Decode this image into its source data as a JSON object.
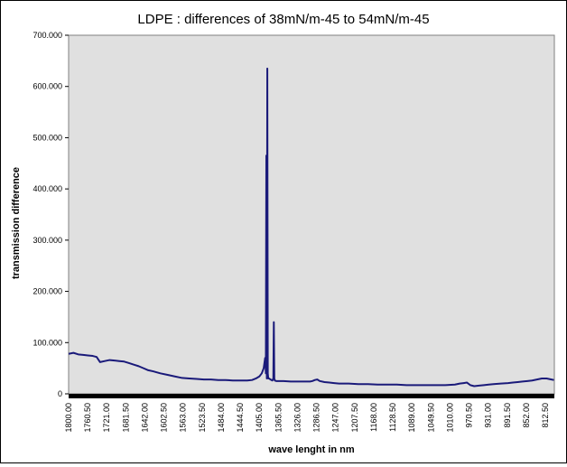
{
  "chart_data": {
    "type": "line",
    "title": "LDPE : differences of 38mN/m-45 to 54mN/m-45",
    "xlabel": "wave lenght in nm",
    "ylabel": "transmission difference",
    "x_reversed": true,
    "xlim": [
      1800.0,
      794.0
    ],
    "ylim": [
      0,
      700
    ],
    "yticks": [
      "0",
      "100.000",
      "200.000",
      "300.000",
      "400.000",
      "500.000",
      "600.000",
      "700.000"
    ],
    "xticks": [
      "1800.00",
      "1760.50",
      "1721.00",
      "1681.50",
      "1642.00",
      "1602.50",
      "1563.00",
      "1523.50",
      "1484.00",
      "1444.50",
      "1405.00",
      "1365.50",
      "1326.00",
      "1286.50",
      "1247.00",
      "1207.50",
      "1168.00",
      "1128.50",
      "1089.00",
      "1049.50",
      "1010.00",
      "970.50",
      "931.00",
      "891.50",
      "852.00",
      "812.50"
    ],
    "grid": false,
    "legend": "none",
    "plot_background": "#e0e0e0",
    "line_color": "#1a1a7a",
    "series": [
      {
        "x": [
          1800,
          1790,
          1780,
          1770,
          1760,
          1750,
          1742,
          1735,
          1725,
          1715,
          1705,
          1695,
          1685,
          1675,
          1665,
          1655,
          1645,
          1635,
          1625,
          1610,
          1595,
          1580,
          1565,
          1550,
          1535,
          1520,
          1505,
          1490,
          1475,
          1460,
          1445,
          1430,
          1420,
          1412,
          1405,
          1400,
          1396,
          1393,
          1391.5,
          1390.5,
          1389.5,
          1388.5,
          1387.5,
          1386.5,
          1385,
          1382,
          1378,
          1376,
          1375,
          1374,
          1373,
          1370,
          1365,
          1355,
          1340,
          1325,
          1310,
          1300,
          1295,
          1290,
          1285,
          1280,
          1270,
          1260,
          1250,
          1240,
          1230,
          1220,
          1200,
          1180,
          1160,
          1140,
          1120,
          1100,
          1080,
          1060,
          1040,
          1020,
          1000,
          990,
          982,
          975,
          968,
          960,
          950,
          940,
          930,
          920,
          905,
          890,
          880,
          870,
          860,
          850,
          840,
          830,
          820,
          810,
          800,
          795
        ],
        "y": [
          78,
          80,
          77,
          76,
          75,
          74,
          72,
          62,
          64,
          66,
          65,
          64,
          63,
          60,
          57,
          54,
          50,
          46,
          44,
          40,
          37,
          34,
          31,
          30,
          29,
          28,
          28,
          27,
          27,
          26,
          26,
          26,
          27,
          30,
          34,
          40,
          50,
          70,
          40,
          465,
          30,
          635,
          40,
          30,
          30,
          28,
          26,
          30,
          140,
          30,
          26,
          25,
          25,
          25,
          24,
          24,
          24,
          24,
          25,
          27,
          28,
          25,
          23,
          22,
          21,
          20,
          20,
          20,
          19,
          19,
          18,
          18,
          18,
          17,
          17,
          17,
          17,
          17,
          18,
          20,
          21,
          22,
          17,
          15,
          16,
          17,
          18,
          19,
          20,
          21,
          22,
          23,
          24,
          25,
          26,
          28,
          30,
          30,
          28,
          27
        ]
      }
    ]
  }
}
